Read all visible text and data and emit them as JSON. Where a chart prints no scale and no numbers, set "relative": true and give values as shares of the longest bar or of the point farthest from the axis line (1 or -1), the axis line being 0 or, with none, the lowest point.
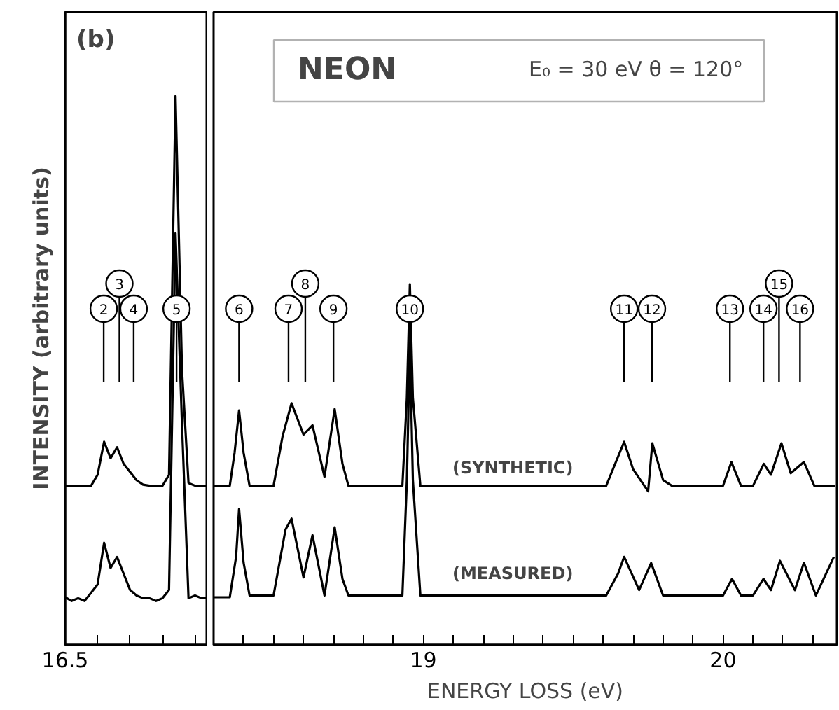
{
  "chart_data": [
    {
      "type": "line",
      "relative": true,
      "categories": [
        null,
        null,
        null,
        null,
        null,
        null,
        null,
        null,
        null,
        null,
        null,
        null,
        null,
        null,
        null,
        null,
        null,
        null,
        null,
        null,
        null,
        null,
        null
      ],
      "tick_labels": false,
      "ylabel": "INTENSITY (arbitrary units)",
      "marker": "none",
      "line_style": "solid",
      "annotations": [
        "(b)",
        "16.5",
        {
          "text": "2"
        },
        {
          "text": "3"
        },
        {
          "text": "4"
        },
        {
          "text": "5"
        }
      ],
      "series": [
        {
          "color": "#000000",
          "values": [
            0.29,
            0.29,
            0.29,
            0.29,
            0.29,
            0.31,
            0.37,
            0.34,
            0.36,
            0.33,
            0.315,
            0.3,
            0.292,
            0.29,
            0.29,
            0.29,
            0.31,
            1.0,
            0.5,
            0.295,
            0.29,
            0.29,
            0.29
          ]
        },
        {
          "color": "#000000",
          "values": [
            0.087,
            0.08,
            0.085,
            0.08,
            0.095,
            0.11,
            0.186,
            0.14,
            0.16,
            0.13,
            0.1,
            0.09,
            0.085,
            0.085,
            0.08,
            0.085,
            0.1,
            0.75,
            0.4,
            0.085,
            0.09,
            0.085,
            0.085
          ]
        }
      ]
    },
    {
      "type": "line",
      "relative": true,
      "xlim": [
        18.3,
        20.38
      ],
      "xticks": [
        {
          "value": 18.4,
          "label": null
        },
        {
          "value": 18.5,
          "label": null
        },
        {
          "value": 18.6,
          "label": null
        },
        {
          "value": 18.7,
          "label": null
        },
        {
          "value": 18.8,
          "label": null
        },
        {
          "value": 18.9,
          "label": null
        },
        19,
        {
          "value": 19.1,
          "label": null
        },
        {
          "value": 19.2,
          "label": null
        },
        {
          "value": 19.3,
          "label": null
        },
        {
          "value": 19.4,
          "label": null
        },
        {
          "value": 19.5,
          "label": null
        },
        {
          "value": 19.6,
          "label": null
        },
        {
          "value": 19.7,
          "label": null
        },
        {
          "value": 19.8,
          "label": null
        },
        {
          "value": 19.9,
          "label": null
        },
        20,
        {
          "value": 20.1,
          "label": null
        },
        {
          "value": 20.2,
          "label": null
        },
        {
          "value": 20.3,
          "label": null
        }
      ],
      "tick_labels": "x",
      "title": "NEON",
      "subtitle": "E₀ = 30 eV   θ = 120°",
      "xlabel": "ENERGY LOSS (eV)",
      "marker": "none",
      "line_style": "solid",
      "annotations": [
        {
          "text": "6",
          "x": 18.385
        },
        {
          "text": "7",
          "x": 18.55
        },
        {
          "text": "8",
          "x": 18.606
        },
        {
          "text": "9",
          "x": 18.7
        },
        {
          "text": "10",
          "x": 18.955
        },
        {
          "text": "11",
          "x": 19.67
        },
        {
          "text": "12",
          "x": 19.763
        },
        {
          "text": "13",
          "x": 20.023
        },
        {
          "text": "14",
          "x": 20.135
        },
        {
          "text": "15",
          "x": 20.187
        },
        {
          "text": "16",
          "x": 20.257
        }
      ],
      "series": [
        {
          "name": "(SYNTHETIC)",
          "color": "#000000",
          "x": [
            18.3,
            18.354,
            18.37,
            18.385,
            18.4,
            18.42,
            18.5,
            18.53,
            18.56,
            18.6,
            18.63,
            18.67,
            18.704,
            18.73,
            18.75,
            18.93,
            18.945,
            18.955,
            18.965,
            18.99,
            19.61,
            19.64,
            19.67,
            19.7,
            19.75,
            19.764,
            19.8,
            19.83,
            20.0,
            20.028,
            20.06,
            20.1,
            20.136,
            20.16,
            20.195,
            20.226,
            20.27,
            20.305,
            20.375
          ],
          "values": [
            0.441,
            0.441,
            0.533,
            0.65,
            0.533,
            0.441,
            0.441,
            0.578,
            0.67,
            0.583,
            0.609,
            0.466,
            0.654,
            0.502,
            0.441,
            0.441,
            0.685,
            1.0,
            0.685,
            0.441,
            0.441,
            0.502,
            0.563,
            0.487,
            0.426,
            0.559,
            0.457,
            0.441,
            0.441,
            0.507,
            0.441,
            0.441,
            0.502,
            0.472,
            0.559,
            0.476,
            0.507,
            0.441,
            0.441
          ]
        },
        {
          "name": "(MEASURED)",
          "color": "#000000",
          "x": [
            18.3,
            18.354,
            18.375,
            18.385,
            18.4,
            18.42,
            18.5,
            18.54,
            18.56,
            18.6,
            18.63,
            18.67,
            18.704,
            18.73,
            18.75,
            18.93,
            18.945,
            18.955,
            18.965,
            18.99,
            19.2,
            19.4,
            19.61,
            19.65,
            19.67,
            19.72,
            19.76,
            19.8,
            19.83,
            20.0,
            20.03,
            20.06,
            20.1,
            20.135,
            20.16,
            20.19,
            20.24,
            20.27,
            20.31,
            20.37
          ],
          "values": [
            0.132,
            0.132,
            0.244,
            0.377,
            0.228,
            0.137,
            0.137,
            0.32,
            0.35,
            0.187,
            0.304,
            0.137,
            0.326,
            0.183,
            0.137,
            0.137,
            0.457,
            0.837,
            0.457,
            0.137,
            0.137,
            0.137,
            0.137,
            0.198,
            0.244,
            0.152,
            0.227,
            0.137,
            0.137,
            0.137,
            0.183,
            0.137,
            0.137,
            0.183,
            0.152,
            0.233,
            0.152,
            0.228,
            0.137,
            0.244
          ]
        }
      ]
    }
  ]
}
